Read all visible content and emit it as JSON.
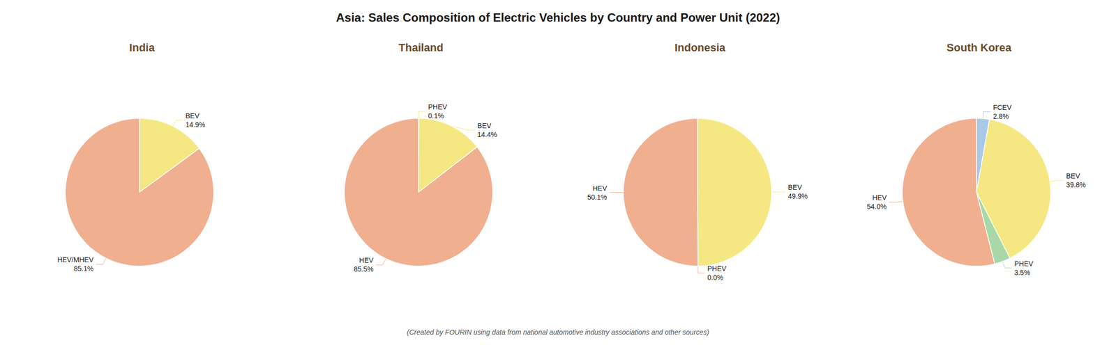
{
  "title": "Asia: Sales Composition of Electric Vehicles by Country and Power Unit (2022)",
  "subtitle": "(Created by FOURIN using data from national automotive industry associations and other sources)",
  "chart_data": [
    {
      "type": "pie",
      "title": "India",
      "categories": [
        "BEV",
        "HEV/MHEV"
      ],
      "values": [
        14.9,
        85.1
      ],
      "value_labels": [
        "14.9%",
        "85.1%"
      ],
      "colors": [
        "#f5e882",
        "#f0b090"
      ],
      "data_labels": true
    },
    {
      "type": "pie",
      "title": "Thailand",
      "categories": [
        "PHEV",
        "BEV",
        "HEV"
      ],
      "values": [
        0.1,
        14.4,
        85.5
      ],
      "value_labels": [
        "0.1%",
        "14.4%",
        "85.5%"
      ],
      "colors": [
        "#f5e882",
        "#f5e882",
        "#f0b090"
      ],
      "data_labels": true
    },
    {
      "type": "pie",
      "title": "Indonesia",
      "categories": [
        "BEV",
        "PHEV",
        "HEV"
      ],
      "values": [
        49.9,
        0.0,
        50.1
      ],
      "value_labels": [
        "49.9%",
        "0.0%",
        "50.1%"
      ],
      "colors": [
        "#f5e882",
        "#f0b090",
        "#f0b090"
      ],
      "data_labels": true
    },
    {
      "type": "pie",
      "title": "South Korea",
      "categories": [
        "FCEV",
        "BEV",
        "PHEV",
        "HEV"
      ],
      "values": [
        2.8,
        39.8,
        3.5,
        54.0
      ],
      "value_labels": [
        "2.8%",
        "39.8%",
        "3.5%",
        "54.0%"
      ],
      "colors": [
        "#a8c8e8",
        "#f5e882",
        "#a8d8a8",
        "#f0b090"
      ],
      "data_labels": true
    }
  ]
}
